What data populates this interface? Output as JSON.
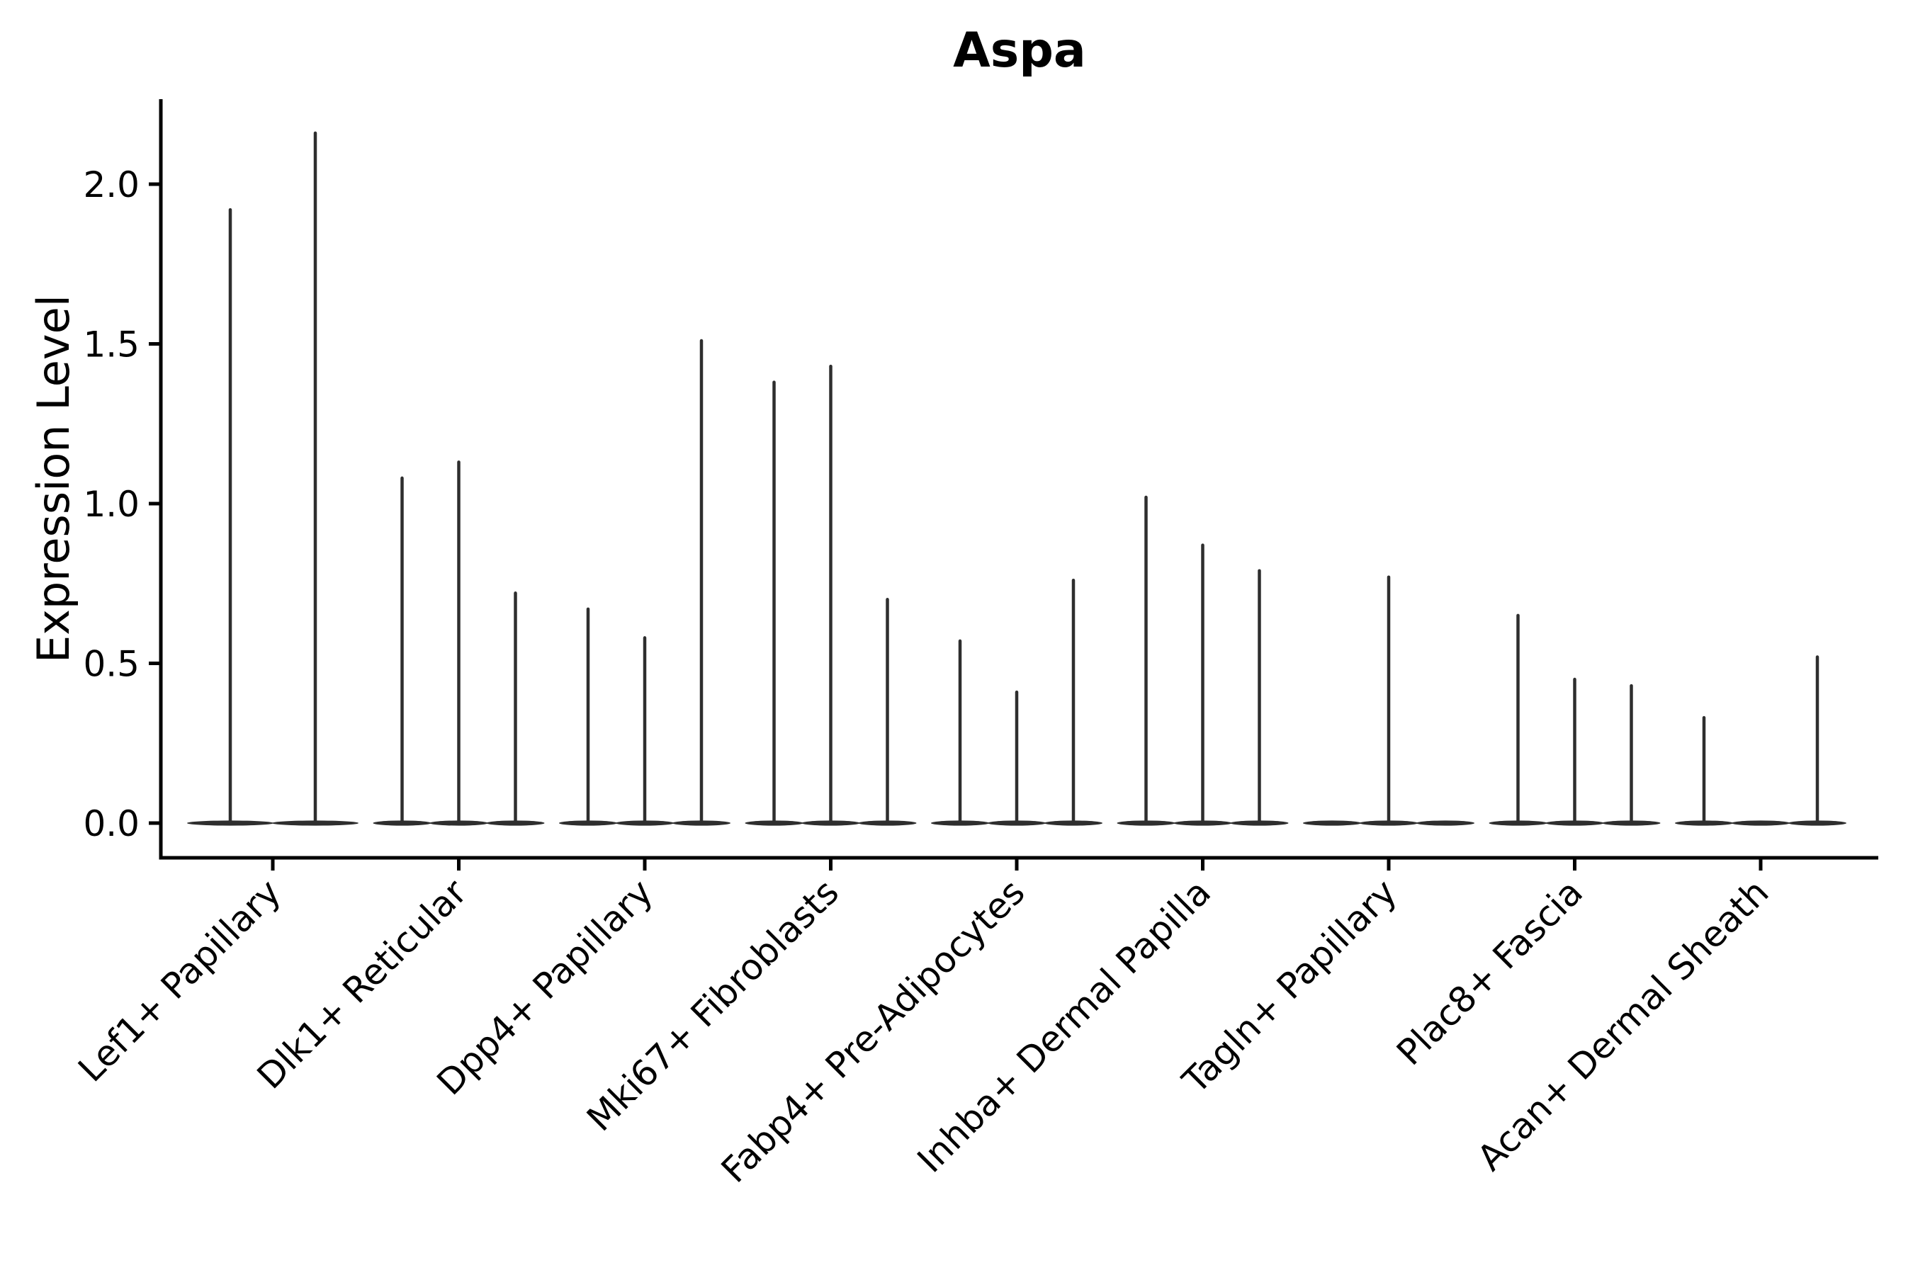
{
  "chart_data": {
    "type": "violin",
    "title": "Aspa",
    "ylabel": "Expression Level",
    "xlabel": "",
    "ylim": [
      0,
      2.26
    ],
    "yticks": [
      0.0,
      0.5,
      1.0,
      1.5,
      2.0
    ],
    "ytick_labels": [
      "0.0",
      "0.5",
      "1.0",
      "1.5",
      "2.0"
    ],
    "grid": false,
    "legend": "none",
    "categories": [
      "Lef1+ Papillary",
      "Dlk1+ Reticular",
      "Dpp4+ Papillary",
      "Mki67+ Fibroblasts",
      "Fabp4+ Pre-Adipocytes",
      "Inhba+ Dermal Papilla",
      "Tagln+ Papillary",
      "Plac8+ Fascia",
      "Acan+ Dermal Sheath"
    ],
    "groups": [
      {
        "label": "Lef1+ Papillary",
        "violin_maxima": [
          1.92,
          2.16
        ]
      },
      {
        "label": "Dlk1+ Reticular",
        "violin_maxima": [
          1.08,
          1.13,
          0.72
        ]
      },
      {
        "label": "Dpp4+ Papillary",
        "violin_maxima": [
          0.67,
          0.58,
          1.51
        ]
      },
      {
        "label": "Mki67+ Fibroblasts",
        "violin_maxima": [
          1.38,
          1.43,
          0.7
        ]
      },
      {
        "label": "Fabp4+ Pre-Adipocytes",
        "violin_maxima": [
          0.57,
          0.41,
          0.76
        ]
      },
      {
        "label": "Inhba+ Dermal Papilla",
        "violin_maxima": [
          1.02,
          0.87,
          0.79
        ]
      },
      {
        "label": "Tagln+ Papillary",
        "violin_maxima": [
          0.0,
          0.77,
          0.0
        ]
      },
      {
        "label": "Plac8+ Fascia",
        "violin_maxima": [
          0.65,
          0.45,
          0.43
        ]
      },
      {
        "label": "Acan+ Dermal Sheath",
        "violin_maxima": [
          0.33,
          0.0,
          0.52
        ]
      }
    ],
    "colors": {
      "violin": "#2e2e2e",
      "axis": "#000000",
      "text": "#000000",
      "background": "#ffffff"
    }
  }
}
